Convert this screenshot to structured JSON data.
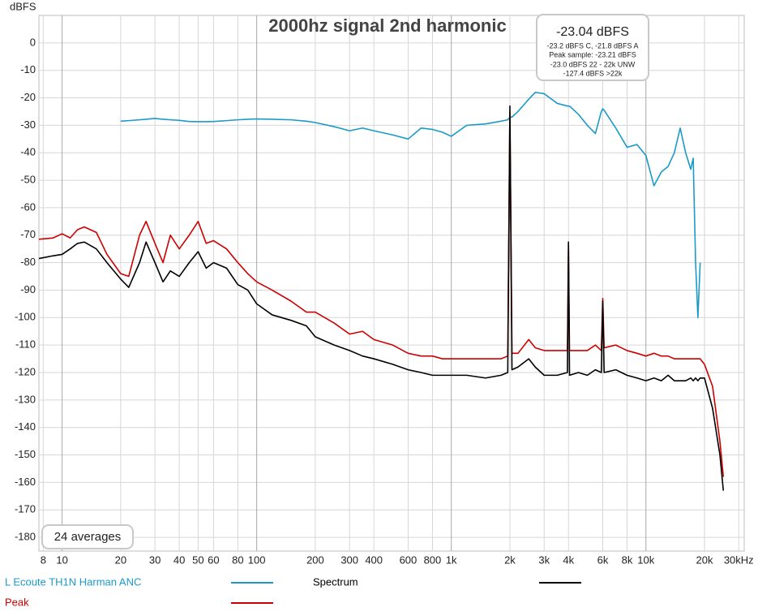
{
  "chart_data": {
    "type": "line",
    "title": "2000hz signal 2nd harmonic",
    "y_label": "dBFS",
    "x_scale": "log",
    "grid": true,
    "xlim": [
      7.6,
      32000
    ],
    "ylim": [
      -185,
      10
    ],
    "xticks": [
      8,
      10,
      20,
      30,
      40,
      50,
      60,
      80,
      100,
      200,
      300,
      400,
      600,
      800,
      {
        "value": 1000,
        "label": "1k"
      },
      {
        "value": 2000,
        "label": "2k"
      },
      {
        "value": 3000,
        "label": "3k"
      },
      {
        "value": 4000,
        "label": "4k"
      },
      {
        "value": 6000,
        "label": "6k"
      },
      {
        "value": 8000,
        "label": "8k"
      },
      {
        "value": 10000,
        "label": "10k"
      },
      {
        "value": 20000,
        "label": "20k"
      },
      {
        "value": 30000,
        "label": "30kHz"
      }
    ],
    "yticks": [
      0,
      -10,
      -20,
      -30,
      -40,
      -50,
      -60,
      -70,
      -80,
      -90,
      -100,
      -110,
      -120,
      -130,
      -140,
      -150,
      -160,
      -170,
      -180
    ],
    "annotations": {
      "readout": "-23.04 dBFS",
      "readout_details": [
        "-23.2 dBFS C, -21.8 dBFS A",
        "Peak sample: -23.21 dBFS",
        "-23.0 dBFS 22 - 22k UNW",
        "-127.4 dBFS >22k"
      ],
      "averages": "24 averages"
    },
    "x": [
      7.6,
      9,
      10,
      11,
      12,
      13,
      15,
      17,
      20,
      22,
      25,
      27,
      30,
      33,
      36,
      40,
      45,
      50,
      55,
      60,
      70,
      80,
      90,
      100,
      120,
      150,
      180,
      200,
      250,
      300,
      350,
      400,
      500,
      600,
      700,
      800,
      900,
      1000,
      1200,
      1500,
      1800,
      1950,
      2000,
      2050,
      2200,
      2500,
      2700,
      3000,
      3500,
      3950,
      4000,
      4050,
      4500,
      5000,
      5500,
      5900,
      6000,
      6100,
      7000,
      8000,
      9000,
      10000,
      11000,
      12000,
      13000,
      14000,
      15000,
      16000,
      17000,
      17500,
      18000,
      18500,
      19000,
      20000,
      22000,
      24000,
      25000
    ],
    "series": [
      {
        "name": "L Ecoute TH1N Harman ANC",
        "color": "#1a9ac9",
        "values": [
          null,
          null,
          null,
          null,
          null,
          null,
          null,
          null,
          -28.5,
          -28.3,
          -28,
          -27.8,
          -27.5,
          -27.8,
          -28,
          -28.2,
          -28.6,
          -28.7,
          -28.7,
          -28.6,
          -28.3,
          -28,
          -27.8,
          -27.7,
          -27.8,
          -28,
          -28.5,
          -29,
          -30.5,
          -32,
          -31,
          -32,
          -33.5,
          -35,
          -31,
          -31.5,
          -32.5,
          -34,
          -30,
          -29.5,
          -28.5,
          -28,
          -27,
          -27,
          -25,
          -20.5,
          -18,
          -18.5,
          -22,
          -23,
          -23,
          -23,
          -26,
          -30,
          -33,
          -25,
          -24,
          -24.5,
          -31,
          -38,
          -37,
          -41,
          -52,
          -47,
          -45,
          -40,
          -31,
          -40,
          -46,
          -42,
          -80,
          -100,
          -80,
          null,
          null,
          null,
          null
        ]
      },
      {
        "name": "Spectrum",
        "color": "#000000",
        "values": [
          -78.5,
          -77.5,
          -77,
          -75,
          -73,
          -72.5,
          -75,
          -80,
          -86,
          -89,
          -80,
          -72.5,
          -80,
          -87,
          -83,
          -85,
          -80,
          -76,
          -82,
          -80,
          -82,
          -88,
          -90,
          -95,
          -99,
          -101,
          -103,
          -107,
          -110,
          -112,
          -114,
          -115,
          -117,
          -119,
          -120,
          -121,
          -121,
          -121,
          -121,
          -122,
          -121,
          -120,
          -23,
          -119,
          -118,
          -115,
          -118,
          -121,
          -121,
          -120,
          -72.5,
          -121,
          -120,
          -121,
          -119,
          -120,
          -94,
          -120,
          -119,
          -121,
          -122,
          -123,
          -122,
          -123,
          -121,
          -123,
          -123,
          -123,
          -122,
          -123,
          -122,
          -123,
          -122,
          -122,
          -133,
          -150,
          -163
        ]
      },
      {
        "name": "Peak",
        "color": "#cc0000",
        "values": [
          -71.5,
          -71,
          -69.5,
          -71,
          -68,
          -67,
          -69,
          -77,
          -84,
          -85,
          -70,
          -65,
          -73,
          -80,
          -70,
          -75,
          -70,
          -65,
          -73,
          -72,
          -75,
          -80,
          -84,
          -87,
          -90,
          -94,
          -98,
          -98,
          -102,
          -106,
          -105,
          -108,
          -110,
          -113,
          -114,
          -114,
          -115,
          -115,
          -115,
          -115,
          -115,
          -114,
          -25,
          -113,
          -113,
          -108,
          -111,
          -112,
          -112,
          -112,
          -75,
          -112,
          -112,
          -112,
          -110,
          -112,
          -93,
          -111,
          -110,
          -112,
          -113,
          -114,
          -113,
          -114,
          -114,
          -115,
          -115,
          -115,
          -115,
          -115,
          -115,
          -115,
          -115,
          -117,
          -125,
          -145,
          -158
        ]
      }
    ]
  }
}
